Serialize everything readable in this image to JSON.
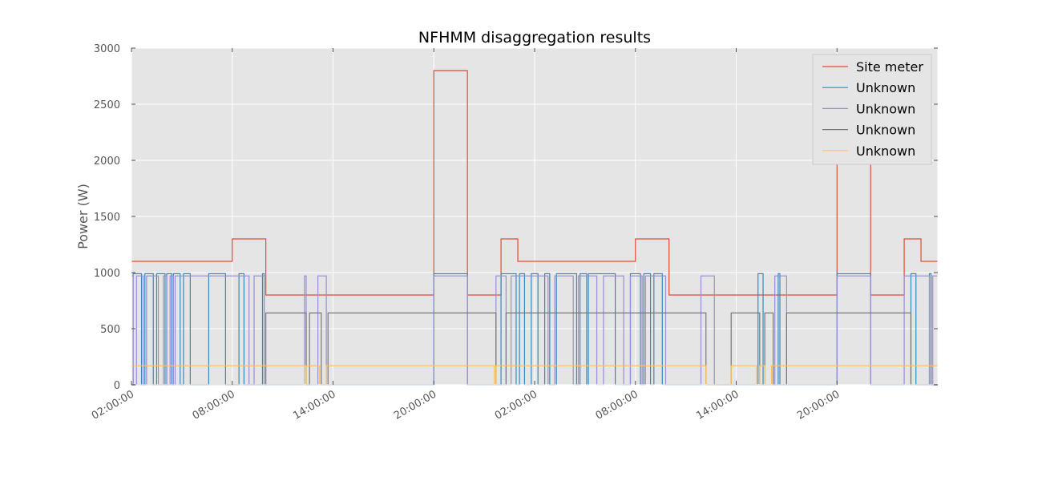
{
  "chart_data": {
    "type": "line",
    "title": "NFHMM disaggregation results",
    "xlabel": "",
    "ylabel": "Power (W)",
    "ylim": [
      0,
      3000
    ],
    "yticks": [
      0,
      500,
      1000,
      1500,
      2000,
      2500,
      3000
    ],
    "xlim_hours": [
      0,
      48
    ],
    "xticks": [
      {
        "h": 0,
        "label": "02:00:00"
      },
      {
        "h": 6,
        "label": "08:00:00"
      },
      {
        "h": 12,
        "label": "14:00:00"
      },
      {
        "h": 18,
        "label": "20:00:00"
      },
      {
        "h": 24,
        "label": "02:00:00"
      },
      {
        "h": 30,
        "label": "08:00:00"
      },
      {
        "h": 36,
        "label": "14:00:00"
      },
      {
        "h": 42,
        "label": "20:00:00"
      }
    ],
    "grid": true,
    "legend_position": "top-right",
    "background_color": "#e5e5e5",
    "series": [
      {
        "name": "Site meter",
        "color": "#e24a33",
        "steps": [
          [
            0,
            1100
          ],
          [
            6,
            1300
          ],
          [
            8,
            800
          ],
          [
            18,
            2800
          ],
          [
            20,
            800
          ],
          [
            22,
            1300
          ],
          [
            23,
            1100
          ],
          [
            30,
            1300
          ],
          [
            32,
            800
          ],
          [
            42,
            2000
          ],
          [
            44,
            800
          ],
          [
            46,
            1300
          ],
          [
            47,
            1100
          ],
          [
            48,
            1100
          ]
        ]
      },
      {
        "name": "Unknown",
        "color": "#348abd",
        "steps": [
          [
            0,
            0
          ],
          [
            0.1,
            990
          ],
          [
            0.6,
            0
          ],
          [
            0.8,
            990
          ],
          [
            1.3,
            0
          ],
          [
            1.5,
            990
          ],
          [
            2.0,
            0
          ],
          [
            2.1,
            990
          ],
          [
            2.4,
            0
          ],
          [
            2.5,
            990
          ],
          [
            2.9,
            0
          ],
          [
            3.1,
            990
          ],
          [
            3.5,
            0
          ],
          [
            4.6,
            990
          ],
          [
            5.6,
            0
          ],
          [
            6.4,
            990
          ],
          [
            6.7,
            0
          ],
          [
            7.8,
            990
          ],
          [
            7.9,
            0
          ],
          [
            18,
            990
          ],
          [
            20,
            0
          ],
          [
            22,
            990
          ],
          [
            22.9,
            0
          ],
          [
            23.1,
            990
          ],
          [
            23.4,
            0
          ],
          [
            23.8,
            990
          ],
          [
            24.2,
            0
          ],
          [
            24.6,
            990
          ],
          [
            24.9,
            0
          ],
          [
            25.3,
            990
          ],
          [
            26.5,
            0
          ],
          [
            26.7,
            990
          ],
          [
            27.1,
            0
          ],
          [
            27.2,
            990
          ],
          [
            28.8,
            0
          ],
          [
            29.7,
            990
          ],
          [
            30.3,
            0
          ],
          [
            30.5,
            990
          ],
          [
            30.9,
            0
          ],
          [
            31.1,
            990
          ],
          [
            31.6,
            0
          ],
          [
            37.3,
            990
          ],
          [
            37.6,
            0
          ],
          [
            38.5,
            990
          ],
          [
            38.6,
            0
          ],
          [
            42,
            990
          ],
          [
            44,
            0
          ],
          [
            46.4,
            990
          ],
          [
            46.7,
            0
          ],
          [
            47.5,
            990
          ],
          [
            47.6,
            0
          ],
          [
            48,
            0
          ]
        ]
      },
      {
        "name": "Unknown",
        "color": "#988ed5",
        "steps": [
          [
            0,
            970
          ],
          [
            0.1,
            0
          ],
          [
            0.3,
            970
          ],
          [
            0.7,
            0
          ],
          [
            0.9,
            970
          ],
          [
            1.6,
            0
          ],
          [
            1.9,
            970
          ],
          [
            2.1,
            0
          ],
          [
            2.3,
            970
          ],
          [
            2.5,
            0
          ],
          [
            2.6,
            970
          ],
          [
            7.0,
            0
          ],
          [
            7.3,
            970
          ],
          [
            7.9,
            0
          ],
          [
            10.3,
            970
          ],
          [
            10.4,
            0
          ],
          [
            11.1,
            970
          ],
          [
            11.6,
            0
          ],
          [
            18,
            970
          ],
          [
            20,
            0
          ],
          [
            21.7,
            970
          ],
          [
            22.3,
            0
          ],
          [
            22.6,
            970
          ],
          [
            24.8,
            0
          ],
          [
            25.2,
            970
          ],
          [
            26.3,
            0
          ],
          [
            26.6,
            970
          ],
          [
            27.7,
            0
          ],
          [
            28.1,
            970
          ],
          [
            29.3,
            0
          ],
          [
            29.7,
            970
          ],
          [
            30.4,
            0
          ],
          [
            30.6,
            970
          ],
          [
            31.8,
            0
          ],
          [
            33.9,
            970
          ],
          [
            34.7,
            0
          ],
          [
            38.3,
            970
          ],
          [
            39.0,
            0
          ],
          [
            42,
            970
          ],
          [
            44,
            0
          ],
          [
            46,
            970
          ],
          [
            47.5,
            0
          ],
          [
            47.7,
            970
          ],
          [
            48,
            970
          ]
        ]
      },
      {
        "name": "Unknown",
        "color": "#777777",
        "steps": [
          [
            0,
            0
          ],
          [
            8,
            640
          ],
          [
            10.4,
            0
          ],
          [
            10.6,
            640
          ],
          [
            11.3,
            0
          ],
          [
            11.7,
            640
          ],
          [
            21.7,
            0
          ],
          [
            22.3,
            640
          ],
          [
            34.2,
            0
          ],
          [
            35.7,
            640
          ],
          [
            37.4,
            0
          ],
          [
            37.7,
            640
          ],
          [
            38.2,
            0
          ],
          [
            39.0,
            640
          ],
          [
            46.4,
            0
          ],
          [
            48,
            0
          ]
        ]
      },
      {
        "name": "Unknown",
        "color": "#fbc15e",
        "steps": [
          [
            0,
            170
          ],
          [
            10.3,
            0
          ],
          [
            10.4,
            170
          ],
          [
            11.2,
            0
          ],
          [
            11.6,
            170
          ],
          [
            21.6,
            0
          ],
          [
            21.7,
            170
          ],
          [
            34.2,
            0
          ],
          [
            35.7,
            170
          ],
          [
            37.2,
            0
          ],
          [
            37.4,
            170
          ],
          [
            37.7,
            0
          ],
          [
            38.1,
            170
          ],
          [
            48,
            170
          ]
        ]
      }
    ]
  }
}
